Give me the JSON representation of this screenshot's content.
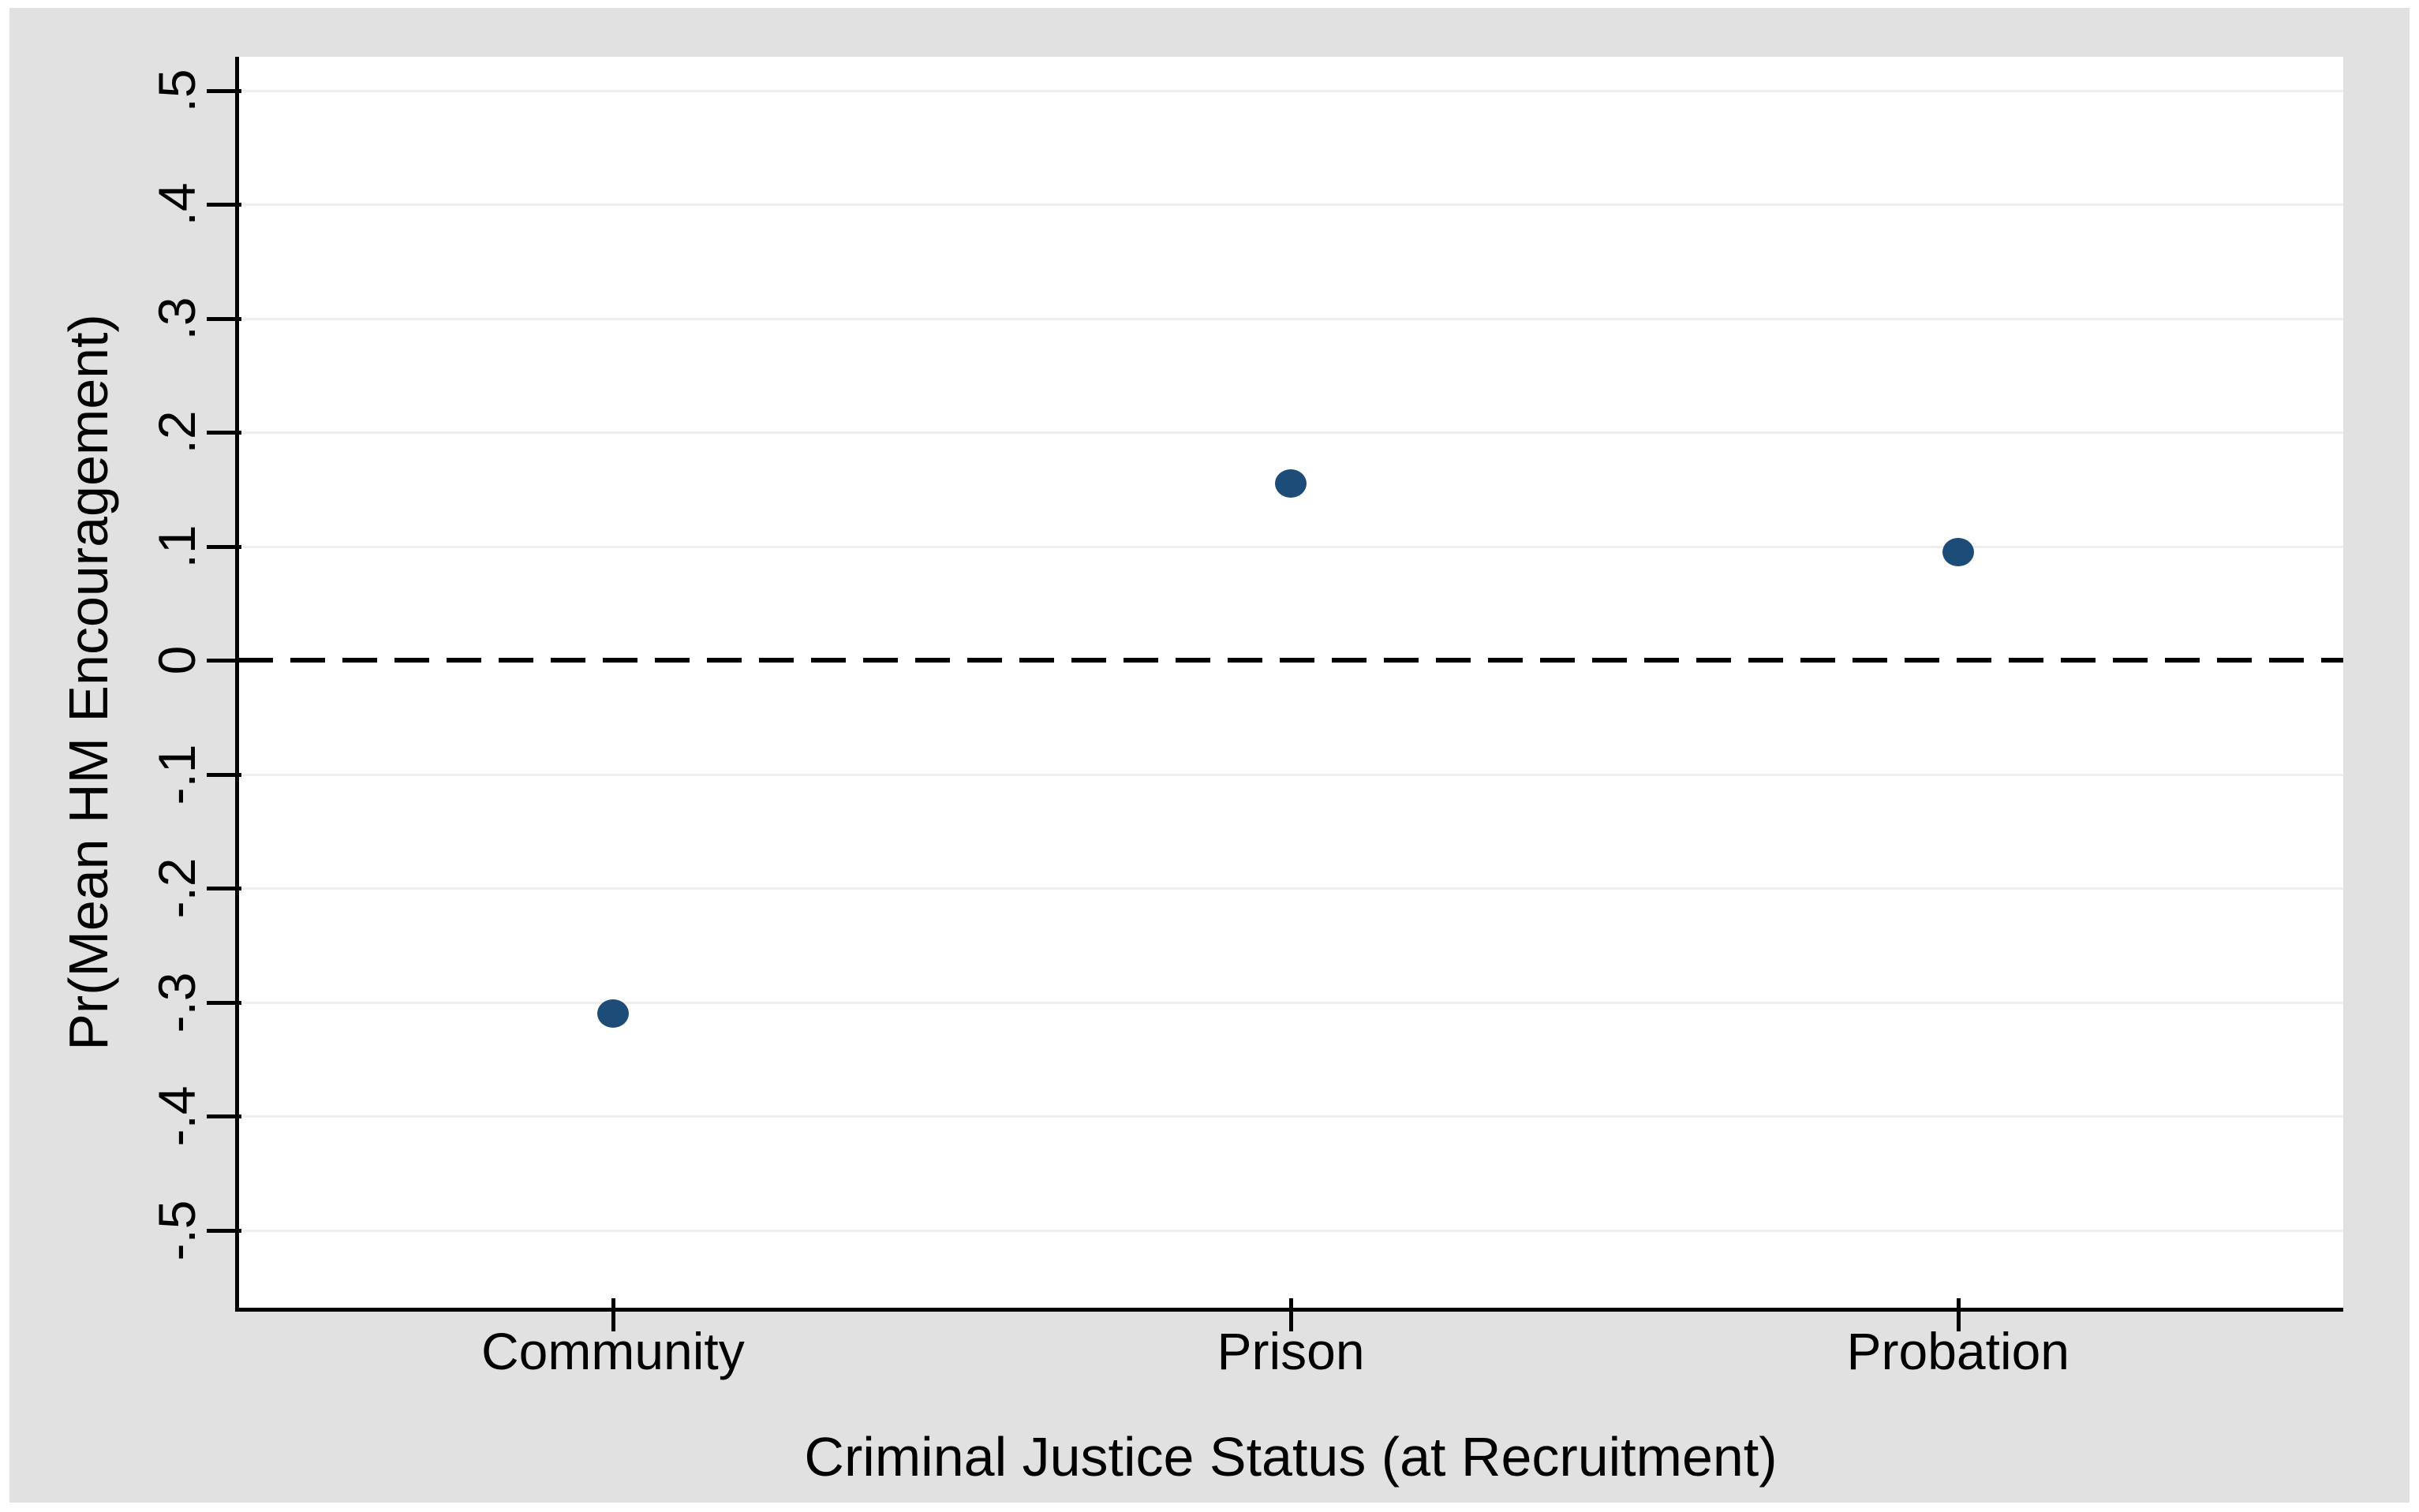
{
  "figure": {
    "page_background": "#ffffff",
    "region_background": "#e1e1e1",
    "plot_background": "#ffffff",
    "gridline_color": "#efefef",
    "axis_color": "#000000",
    "marker_color": "#1d4c78"
  },
  "chart_data": {
    "type": "scatter",
    "title": "",
    "xlabel": "Criminal Justice Status (at Recruitment)",
    "ylabel": "Pr(Mean HM Encouragement)",
    "categories": [
      "Community",
      "Prison",
      "Probation"
    ],
    "values": [
      -0.31,
      0.155,
      0.095
    ],
    "y_ticks": [
      {
        "label": ".5",
        "value": 0.5
      },
      {
        "label": ".4",
        "value": 0.4
      },
      {
        "label": ".3",
        "value": 0.3
      },
      {
        "label": ".2",
        "value": 0.2
      },
      {
        "label": ".1",
        "value": 0.1
      },
      {
        "label": "0",
        "value": 0
      },
      {
        "label": "-.1",
        "value": -0.1
      },
      {
        "label": "-.2",
        "value": -0.2
      },
      {
        "label": "-.3",
        "value": -0.3
      },
      {
        "label": "-.4",
        "value": -0.4
      },
      {
        "label": "-.5",
        "value": -0.5
      }
    ],
    "ylim": [
      -0.57,
      0.53
    ],
    "grid": true,
    "legend_position": "none",
    "zero_reference_line": {
      "value": 0,
      "style": "dashed"
    }
  }
}
